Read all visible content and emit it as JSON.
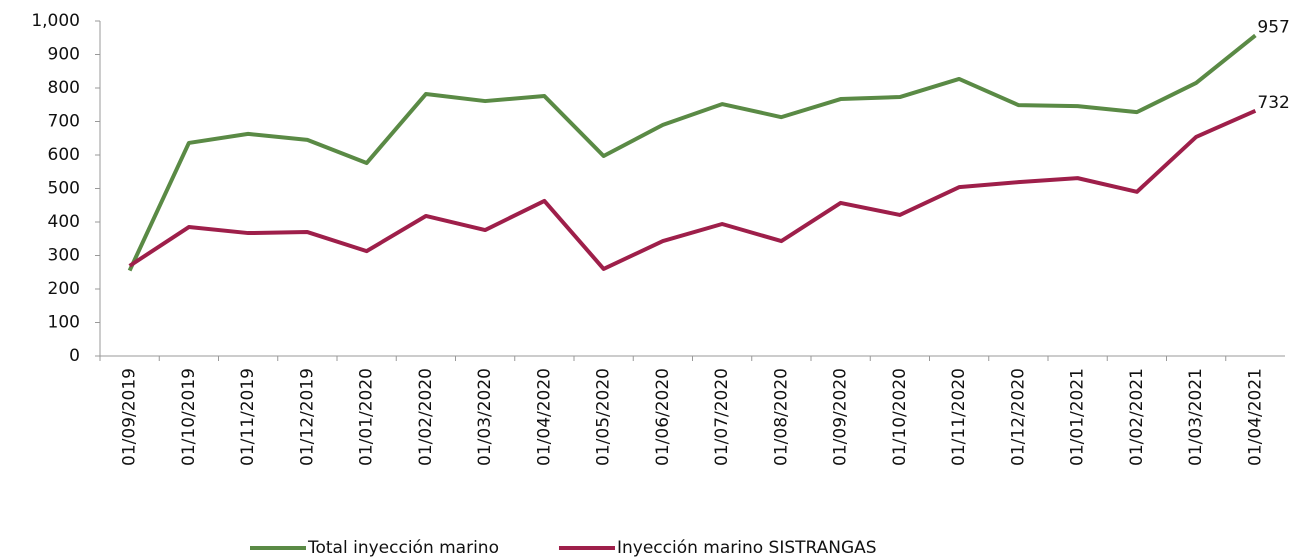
{
  "chart_data": {
    "type": "line",
    "categories": [
      "01/09/2019",
      "01/10/2019",
      "01/11/2019",
      "01/12/2019",
      "01/01/2020",
      "01/02/2020",
      "01/03/2020",
      "01/04/2020",
      "01/05/2020",
      "01/06/2020",
      "01/07/2020",
      "01/08/2020",
      "01/09/2020",
      "01/10/2020",
      "01/11/2020",
      "01/12/2020",
      "01/01/2021",
      "01/02/2021",
      "01/03/2021",
      "01/04/2021"
    ],
    "series": [
      {
        "name": "Total inyección marino",
        "color": "#5a8a45",
        "values": [
          255,
          636,
          663,
          645,
          576,
          782,
          761,
          776,
          597,
          690,
          752,
          713,
          767,
          773,
          827,
          749,
          746,
          728,
          815,
          957
        ]
      },
      {
        "name": "Inyección marino SISTRANGAS",
        "color": "#9e1f4a",
        "values": [
          269,
          385,
          367,
          370,
          313,
          418,
          376,
          463,
          260,
          343,
          394,
          343,
          457,
          421,
          504,
          519,
          531,
          490,
          654,
          732
        ]
      }
    ],
    "ylim": [
      0,
      1000
    ],
    "yticks": [
      0,
      100,
      200,
      300,
      400,
      500,
      600,
      700,
      800,
      900,
      {
        "value": 1000,
        "label": "1,000"
      }
    ],
    "label_last_point": true,
    "legend": "bottom"
  }
}
